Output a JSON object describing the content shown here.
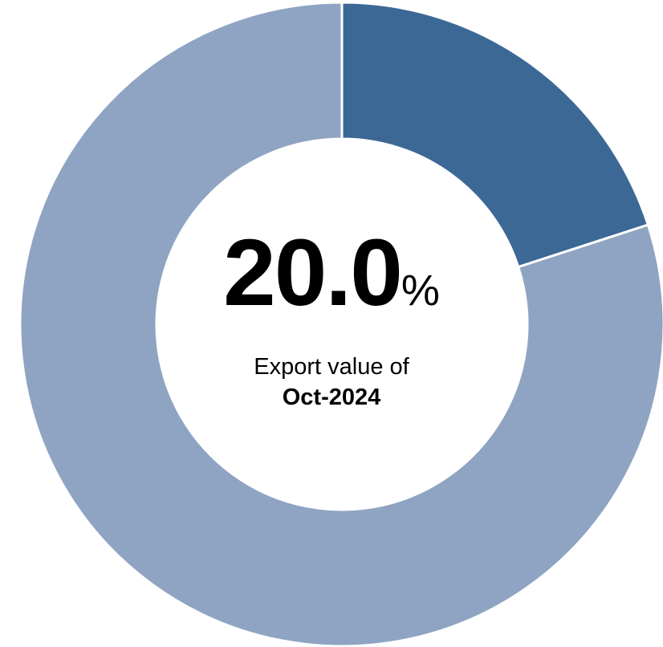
{
  "chart_data": {
    "type": "pie",
    "donut": true,
    "categories": [
      "",
      ""
    ],
    "values": [
      20.0,
      80.0
    ],
    "colors": [
      "#3c6896",
      "#8fa4c2"
    ],
    "highlight_value": "20.0",
    "highlight_unit": "%",
    "caption": "Export value of",
    "period": "Oct-2024"
  }
}
